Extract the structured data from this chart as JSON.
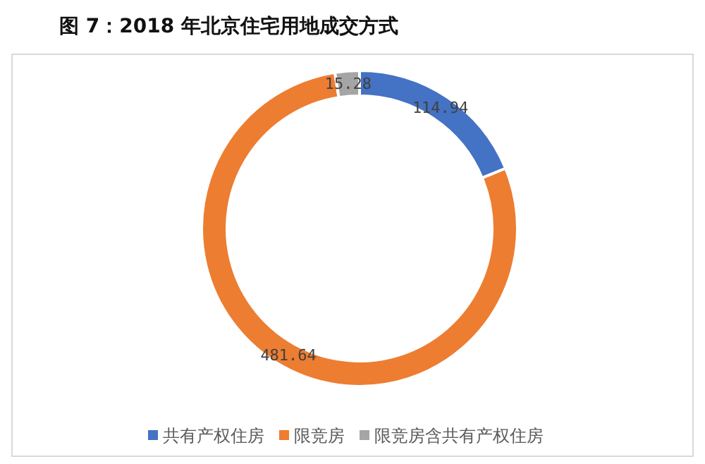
{
  "chart_data": {
    "type": "donut",
    "title": "图 7：2018 年北京住宅用地成交方式",
    "categories": [
      "共有产权住房",
      "限竞房",
      "限竞房含共有产权住房"
    ],
    "values": [
      114.94,
      481.64,
      15.28
    ],
    "colors": [
      "#4472c4",
      "#ed7d31",
      "#a5a5a5"
    ],
    "data_labels": true,
    "legend": "bottom"
  }
}
